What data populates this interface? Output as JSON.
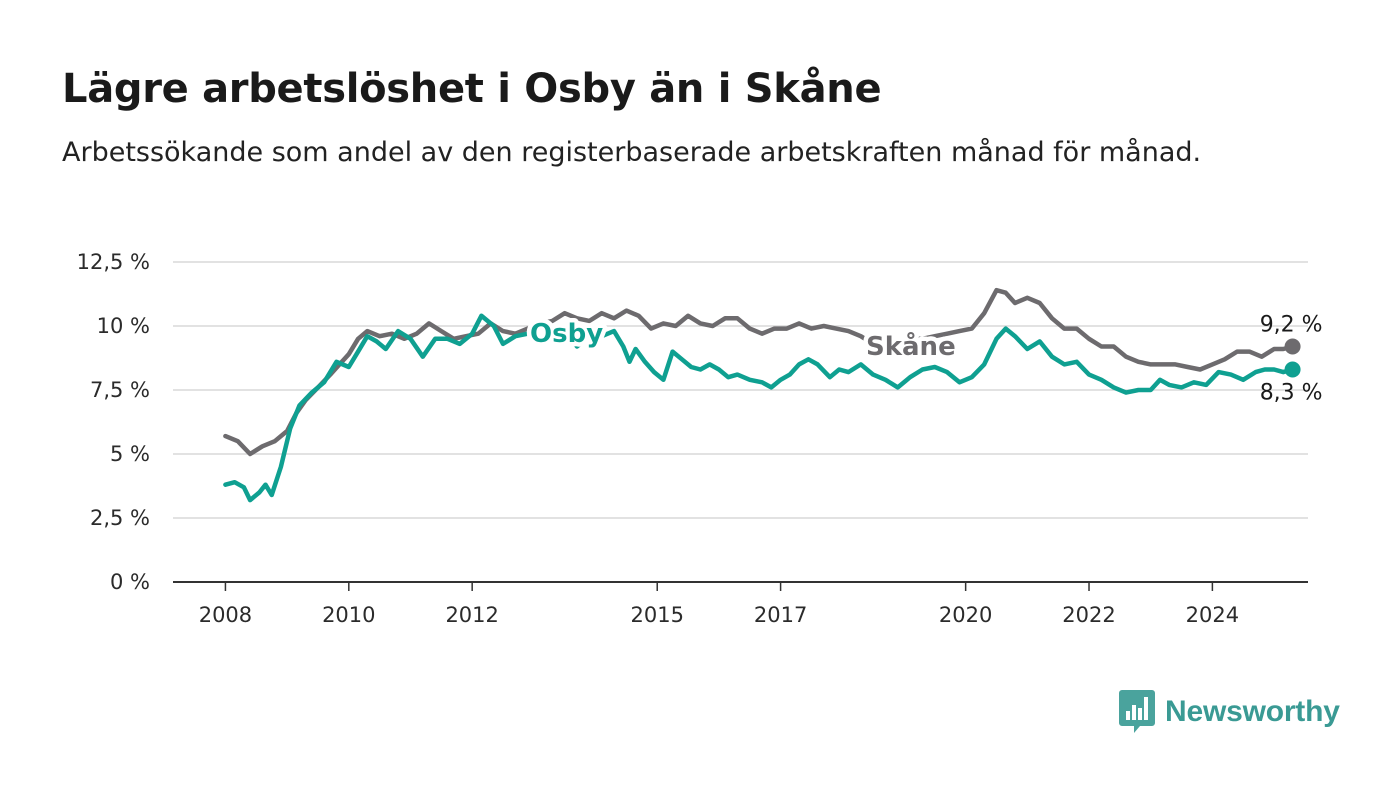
{
  "header": {
    "title": "Lägre arbetslöshet i Osby än i Skåne",
    "subtitle": "Arbetssökande som andel av den registerbaserade arbetskraften månad för månad."
  },
  "brand": {
    "name": "Newsworthy",
    "icon": "newsworthy-chart-bubble-icon",
    "color": "#4aa39d"
  },
  "chart_data": {
    "type": "line",
    "x_unit": "year",
    "ylim": [
      0,
      12.5
    ],
    "y_ticks": [
      0,
      2.5,
      5,
      7.5,
      10,
      12.5
    ],
    "y_tick_labels": [
      "0 %",
      "2,5 %",
      "5 %",
      "7,5 %",
      "10 %",
      "12,5 %"
    ],
    "x_ticks": [
      2008,
      2010,
      2012,
      2015,
      2017,
      2020,
      2022,
      2024
    ],
    "x_tick_labels": [
      "2008",
      "2010",
      "2012",
      "2015",
      "2017",
      "2020",
      "2022",
      "2024"
    ],
    "xlim": [
      2007.15,
      2025.55
    ],
    "grid": true,
    "series": [
      {
        "name": "Skåne",
        "color": "#6d6b6e",
        "end_label": "9,2 %",
        "points": [
          [
            2008.0,
            5.7
          ],
          [
            2008.2,
            5.5
          ],
          [
            2008.4,
            5.0
          ],
          [
            2008.6,
            5.3
          ],
          [
            2008.8,
            5.5
          ],
          [
            2009.0,
            5.9
          ],
          [
            2009.15,
            6.6
          ],
          [
            2009.3,
            7.1
          ],
          [
            2009.5,
            7.6
          ],
          [
            2009.7,
            8.1
          ],
          [
            2009.85,
            8.5
          ],
          [
            2010.0,
            8.9
          ],
          [
            2010.15,
            9.5
          ],
          [
            2010.3,
            9.8
          ],
          [
            2010.5,
            9.6
          ],
          [
            2010.7,
            9.7
          ],
          [
            2010.9,
            9.5
          ],
          [
            2011.1,
            9.7
          ],
          [
            2011.3,
            10.1
          ],
          [
            2011.5,
            9.8
          ],
          [
            2011.7,
            9.5
          ],
          [
            2011.9,
            9.6
          ],
          [
            2012.1,
            9.7
          ],
          [
            2012.3,
            10.1
          ],
          [
            2012.5,
            9.8
          ],
          [
            2012.7,
            9.7
          ],
          [
            2012.9,
            9.9
          ],
          [
            2013.1,
            10.1
          ],
          [
            2013.3,
            10.2
          ],
          [
            2013.5,
            10.5
          ],
          [
            2013.7,
            10.3
          ],
          [
            2013.9,
            10.2
          ],
          [
            2014.1,
            10.5
          ],
          [
            2014.3,
            10.3
          ],
          [
            2014.5,
            10.6
          ],
          [
            2014.7,
            10.4
          ],
          [
            2014.9,
            9.9
          ],
          [
            2015.1,
            10.1
          ],
          [
            2015.3,
            10.0
          ],
          [
            2015.5,
            10.4
          ],
          [
            2015.7,
            10.1
          ],
          [
            2015.9,
            10.0
          ],
          [
            2016.1,
            10.3
          ],
          [
            2016.3,
            10.3
          ],
          [
            2016.5,
            9.9
          ],
          [
            2016.7,
            9.7
          ],
          [
            2016.9,
            9.9
          ],
          [
            2017.1,
            9.9
          ],
          [
            2017.3,
            10.1
          ],
          [
            2017.5,
            9.9
          ],
          [
            2017.7,
            10.0
          ],
          [
            2017.9,
            9.9
          ],
          [
            2018.1,
            9.8
          ],
          [
            2018.3,
            9.6
          ],
          [
            2018.5,
            9.3
          ],
          [
            2018.7,
            9.1
          ],
          [
            2018.9,
            9.3
          ],
          [
            2019.1,
            9.5
          ],
          [
            2019.3,
            9.5
          ],
          [
            2019.5,
            9.6
          ],
          [
            2019.7,
            9.7
          ],
          [
            2019.9,
            9.8
          ],
          [
            2020.1,
            9.9
          ],
          [
            2020.3,
            10.5
          ],
          [
            2020.5,
            11.4
          ],
          [
            2020.65,
            11.3
          ],
          [
            2020.8,
            10.9
          ],
          [
            2021.0,
            11.1
          ],
          [
            2021.2,
            10.9
          ],
          [
            2021.4,
            10.3
          ],
          [
            2021.6,
            9.9
          ],
          [
            2021.8,
            9.9
          ],
          [
            2022.0,
            9.5
          ],
          [
            2022.2,
            9.2
          ],
          [
            2022.4,
            9.2
          ],
          [
            2022.6,
            8.8
          ],
          [
            2022.8,
            8.6
          ],
          [
            2023.0,
            8.5
          ],
          [
            2023.2,
            8.5
          ],
          [
            2023.4,
            8.5
          ],
          [
            2023.6,
            8.4
          ],
          [
            2023.8,
            8.3
          ],
          [
            2024.0,
            8.5
          ],
          [
            2024.2,
            8.7
          ],
          [
            2024.4,
            9.0
          ],
          [
            2024.6,
            9.0
          ],
          [
            2024.8,
            8.8
          ],
          [
            2025.0,
            9.1
          ],
          [
            2025.15,
            9.1
          ],
          [
            2025.3,
            9.2
          ]
        ]
      },
      {
        "name": "Osby",
        "color": "#0fa091",
        "end_label": "8,3 %",
        "points": [
          [
            2008.0,
            3.8
          ],
          [
            2008.15,
            3.9
          ],
          [
            2008.3,
            3.7
          ],
          [
            2008.4,
            3.2
          ],
          [
            2008.55,
            3.5
          ],
          [
            2008.65,
            3.8
          ],
          [
            2008.75,
            3.4
          ],
          [
            2008.9,
            4.5
          ],
          [
            2009.05,
            6.0
          ],
          [
            2009.2,
            6.9
          ],
          [
            2009.4,
            7.4
          ],
          [
            2009.6,
            7.8
          ],
          [
            2009.8,
            8.6
          ],
          [
            2010.0,
            8.4
          ],
          [
            2010.15,
            9.0
          ],
          [
            2010.3,
            9.6
          ],
          [
            2010.45,
            9.4
          ],
          [
            2010.6,
            9.1
          ],
          [
            2010.8,
            9.8
          ],
          [
            2011.0,
            9.5
          ],
          [
            2011.2,
            8.8
          ],
          [
            2011.4,
            9.5
          ],
          [
            2011.6,
            9.5
          ],
          [
            2011.8,
            9.3
          ],
          [
            2012.0,
            9.7
          ],
          [
            2012.15,
            10.4
          ],
          [
            2012.35,
            10.0
          ],
          [
            2012.5,
            9.3
          ],
          [
            2012.7,
            9.6
          ],
          [
            2012.9,
            9.7
          ],
          [
            2013.1,
            9.6
          ],
          [
            2013.3,
            9.5
          ],
          [
            2013.5,
            9.8
          ],
          [
            2013.7,
            9.2
          ],
          [
            2013.9,
            9.6
          ],
          [
            2014.1,
            9.6
          ],
          [
            2014.3,
            9.8
          ],
          [
            2014.45,
            9.2
          ],
          [
            2014.55,
            8.6
          ],
          [
            2014.65,
            9.1
          ],
          [
            2014.8,
            8.6
          ],
          [
            2014.95,
            8.2
          ],
          [
            2015.1,
            7.9
          ],
          [
            2015.25,
            9.0
          ],
          [
            2015.4,
            8.7
          ],
          [
            2015.55,
            8.4
          ],
          [
            2015.7,
            8.3
          ],
          [
            2015.85,
            8.5
          ],
          [
            2016.0,
            8.3
          ],
          [
            2016.15,
            8.0
          ],
          [
            2016.3,
            8.1
          ],
          [
            2016.5,
            7.9
          ],
          [
            2016.7,
            7.8
          ],
          [
            2016.85,
            7.6
          ],
          [
            2017.0,
            7.9
          ],
          [
            2017.15,
            8.1
          ],
          [
            2017.3,
            8.5
          ],
          [
            2017.45,
            8.7
          ],
          [
            2017.6,
            8.5
          ],
          [
            2017.8,
            8.0
          ],
          [
            2017.95,
            8.3
          ],
          [
            2018.1,
            8.2
          ],
          [
            2018.3,
            8.5
          ],
          [
            2018.5,
            8.1
          ],
          [
            2018.7,
            7.9
          ],
          [
            2018.9,
            7.6
          ],
          [
            2019.1,
            8.0
          ],
          [
            2019.3,
            8.3
          ],
          [
            2019.5,
            8.4
          ],
          [
            2019.7,
            8.2
          ],
          [
            2019.9,
            7.8
          ],
          [
            2020.1,
            8.0
          ],
          [
            2020.3,
            8.5
          ],
          [
            2020.5,
            9.5
          ],
          [
            2020.65,
            9.9
          ],
          [
            2020.8,
            9.6
          ],
          [
            2021.0,
            9.1
          ],
          [
            2021.2,
            9.4
          ],
          [
            2021.4,
            8.8
          ],
          [
            2021.6,
            8.5
          ],
          [
            2021.8,
            8.6
          ],
          [
            2022.0,
            8.1
          ],
          [
            2022.2,
            7.9
          ],
          [
            2022.4,
            7.6
          ],
          [
            2022.6,
            7.4
          ],
          [
            2022.8,
            7.5
          ],
          [
            2023.0,
            7.5
          ],
          [
            2023.15,
            7.9
          ],
          [
            2023.3,
            7.7
          ],
          [
            2023.5,
            7.6
          ],
          [
            2023.7,
            7.8
          ],
          [
            2023.9,
            7.7
          ],
          [
            2024.1,
            8.2
          ],
          [
            2024.3,
            8.1
          ],
          [
            2024.5,
            7.9
          ],
          [
            2024.7,
            8.2
          ],
          [
            2024.85,
            8.3
          ],
          [
            2025.0,
            8.3
          ],
          [
            2025.15,
            8.2
          ],
          [
            2025.3,
            8.3
          ]
        ]
      }
    ]
  }
}
